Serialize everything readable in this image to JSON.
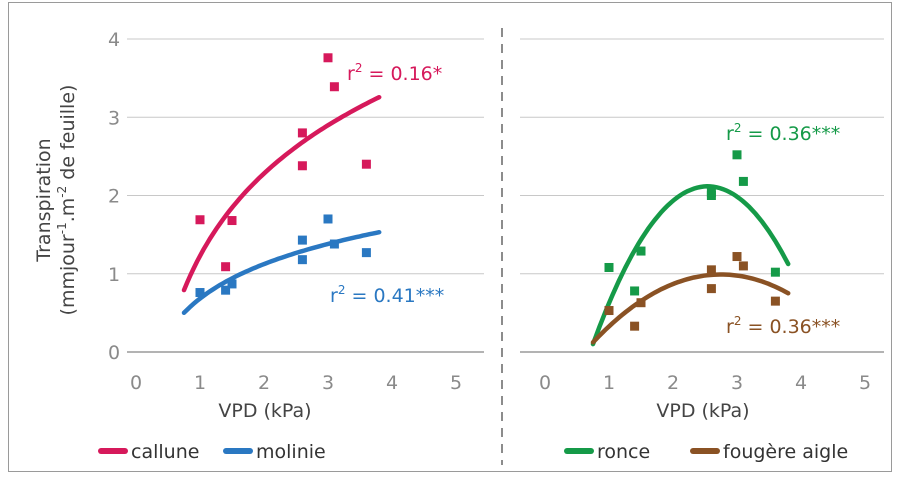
{
  "chart_data": [
    {
      "type": "scatter",
      "panel": "left",
      "xlabel": "VPD (kPa)",
      "ylabel_line1": "Transpiration",
      "ylabel_line2": "(mmjour",
      "ylabel_sup1": "-1",
      "ylabel_line3": ".m",
      "ylabel_sup2": "-2",
      "ylabel_line4": " de feuille)",
      "xlim": [
        0,
        5
      ],
      "ylim": [
        0,
        4
      ],
      "xticks": [
        "0",
        "1",
        "2",
        "3",
        "4",
        "5"
      ],
      "yticks": [
        "0",
        "1",
        "2",
        "3",
        "4"
      ],
      "grid": "horizontal",
      "series": [
        {
          "name": "callune",
          "color": "#d6195b",
          "points": [
            [
              1.0,
              1.69
            ],
            [
              1.4,
              1.09
            ],
            [
              1.5,
              1.68
            ],
            [
              2.6,
              2.8
            ],
            [
              2.6,
              2.38
            ],
            [
              3.0,
              3.76
            ],
            [
              3.1,
              3.39
            ],
            [
              3.6,
              2.4
            ]
          ],
          "fit": {
            "kind": "log",
            "x_range": [
              0.75,
              3.8
            ]
          },
          "r2_base": "r",
          "r2_sup": "2",
          "r2_text": " = 0.16*"
        },
        {
          "name": "molinie",
          "color": "#2a78c2",
          "points": [
            [
              1.0,
              0.76
            ],
            [
              1.4,
              0.79
            ],
            [
              1.5,
              0.87
            ],
            [
              2.6,
              1.43
            ],
            [
              2.6,
              1.18
            ],
            [
              3.0,
              1.7
            ],
            [
              3.1,
              1.38
            ],
            [
              3.6,
              1.27
            ]
          ],
          "fit": {
            "kind": "log",
            "x_range": [
              0.75,
              3.8
            ]
          },
          "r2_base": "r",
          "r2_sup": "2",
          "r2_text": " = 0.41***"
        }
      ]
    },
    {
      "type": "scatter",
      "panel": "right",
      "xlabel": "VPD (kPa)",
      "xlim": [
        0,
        5
      ],
      "ylim": [
        0,
        4
      ],
      "xticks": [
        "0",
        "1",
        "2",
        "3",
        "4",
        "5"
      ],
      "grid": "horizontal",
      "series": [
        {
          "name": "ronce",
          "color": "#159a48",
          "points": [
            [
              1.0,
              1.08
            ],
            [
              1.4,
              0.78
            ],
            [
              1.5,
              1.29
            ],
            [
              2.6,
              2.04
            ],
            [
              2.6,
              2.0
            ],
            [
              3.0,
              2.52
            ],
            [
              3.1,
              2.18
            ],
            [
              3.6,
              1.02
            ]
          ],
          "fit": {
            "kind": "poly2",
            "x_range": [
              0.75,
              3.8
            ]
          },
          "r2_base": "r",
          "r2_sup": "2",
          "r2_text": " = 0.36***"
        },
        {
          "name": "fougère aigle",
          "color": "#8a5224",
          "points": [
            [
              1.0,
              0.53
            ],
            [
              1.4,
              0.33
            ],
            [
              1.5,
              0.63
            ],
            [
              2.6,
              1.05
            ],
            [
              2.6,
              0.81
            ],
            [
              3.0,
              1.22
            ],
            [
              3.1,
              1.1
            ],
            [
              3.6,
              0.65
            ]
          ],
          "fit": {
            "kind": "poly2",
            "x_range": [
              0.75,
              3.8
            ]
          },
          "r2_base": "r",
          "r2_sup": "2",
          "r2_text": " = 0.36***"
        }
      ]
    }
  ]
}
